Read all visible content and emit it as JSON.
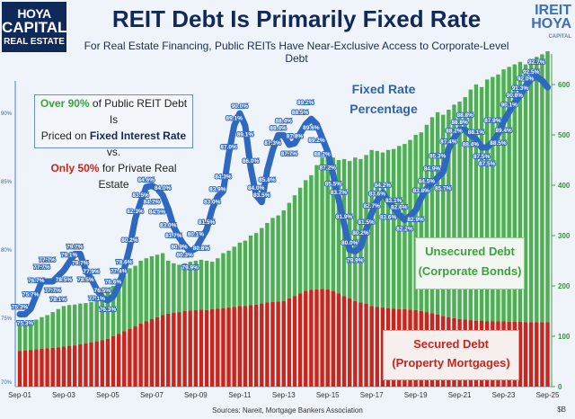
{
  "header": {
    "logo_left": [
      "HOYA",
      "CAPITAL",
      "REAL ESTATE"
    ],
    "title": "REIT Debt Is Primarily Fixed Rate",
    "subtitle": "For Real Estate Financing, Public REITs Have Near-Exclusive Access to Corporate-Level Debt",
    "logo_right": [
      "IREIT",
      "HOYA",
      "CAPITAL"
    ]
  },
  "callout": {
    "p1": "Over 90%",
    "p2": " of Public REIT Debt Is",
    "p3": "Priced on ",
    "p4": "Fixed Interest Rate",
    "p5": " vs.",
    "p6": "Only 50%",
    "p7": " for Private Real Estate"
  },
  "annotations": {
    "fixed_rate": [
      "Fixed Rate",
      "Percentage"
    ],
    "unsecured": [
      "Unsecured Debt",
      "(Corporate Bonds)"
    ],
    "secured": [
      "Secured Debt",
      "(Property Mortgages)"
    ]
  },
  "footer": {
    "sources": "Sources: Nareit, Mortgage Bankers Association",
    "unit": "$B"
  },
  "colors": {
    "unsecured": "#4caf50",
    "secured": "#c8261d",
    "fixed_rate_line": "#2f68c0",
    "title": "#11285a"
  },
  "chart_data": {
    "type": "bar+line",
    "x_tick_labels": [
      "Sep-01",
      "Sep-03",
      "Sep-05",
      "Sep-07",
      "Sep-09",
      "Sep-11",
      "Sep-13",
      "Sep-15",
      "Sep-17",
      "Sep-19",
      "Sep-21",
      "Sep-23",
      "Sep-25"
    ],
    "frequency": "quarterly",
    "left_axis": {
      "ticks": [
        "70%",
        "75%",
        "80%",
        "85%",
        "90%"
      ],
      "ylim": [
        70,
        90
      ]
    },
    "right_axis": {
      "ticks": [
        "0",
        "100",
        "200",
        "300",
        "400",
        "500",
        "600"
      ],
      "ylim": [
        0,
        700
      ],
      "unit": "$B"
    },
    "grid": false,
    "series": [
      {
        "name": "Secured Debt (Property Mortgages)",
        "axis": "right",
        "type": "stacked-bar",
        "values": [
          71,
          72,
          73,
          74,
          75,
          76,
          77,
          78,
          80,
          81,
          82,
          84,
          86,
          88,
          90,
          92,
          95,
          100,
          105,
          110,
          115,
          120,
          125,
          130,
          134,
          138,
          142,
          145,
          147,
          148,
          150,
          151,
          152,
          153,
          152,
          154,
          155,
          156,
          157,
          158,
          160,
          160,
          162,
          163,
          165,
          167,
          168,
          169,
          170,
          175,
          180,
          185,
          190,
          192,
          193,
          194,
          193,
          190,
          185,
          180,
          175,
          170,
          167,
          165,
          160,
          158,
          157,
          156,
          155,
          154,
          154,
          153,
          152,
          150,
          148,
          146,
          143,
          140,
          138,
          136,
          134,
          133,
          132,
          131,
          131,
          130,
          130,
          130,
          130,
          129,
          129,
          129,
          128,
          128,
          128,
          128,
          128
        ]
      },
      {
        "name": "Unsecured Debt (Corporate Bonds)",
        "axis": "right",
        "type": "stacked-bar",
        "note_total_values": true,
        "total_values": [
          129,
          128,
          130,
          133,
          138,
          142,
          148,
          154,
          160,
          162,
          163,
          165,
          166,
          168,
          175,
          185,
          193,
          200,
          210,
          222,
          235,
          240,
          250,
          255,
          259,
          262,
          265,
          250,
          245,
          242,
          245,
          248,
          250,
          252,
          250,
          248,
          255,
          265,
          270,
          278,
          286,
          290,
          300,
          305,
          315,
          325,
          335,
          340,
          350,
          365,
          380,
          395,
          410,
          420,
          440,
          455,
          460,
          455,
          450,
          452,
          448,
          455,
          452,
          460,
          470,
          468,
          465,
          470,
          472,
          478,
          482,
          490,
          500,
          505,
          520,
          535,
          545,
          540,
          550,
          560,
          566,
          575,
          590,
          600,
          595,
          610,
          615,
          620,
          630,
          635,
          640,
          645,
          640,
          650,
          655,
          660,
          666
        ]
      },
      {
        "name": "Fixed Rate Percentage",
        "axis": "left",
        "type": "line",
        "values": [
          75.3,
          75.3,
          75.7,
          76.7,
          77.7,
          77.7,
          77.7,
          78.1,
          78.5,
          79.1,
          79.7,
          79.7,
          78.5,
          77.9,
          77.1,
          76.5,
          76.3,
          76.6,
          77.4,
          78.6,
          80.2,
          82.3,
          83.5,
          84.6,
          84.7,
          84.5,
          84.0,
          83.0,
          81.7,
          80.9,
          80.3,
          79.9,
          80.1,
          80.8,
          81.5,
          83.0,
          83.9,
          84.3,
          87.0,
          89.1,
          90.0,
          89.1,
          86.0,
          84.0,
          83.5,
          85.8,
          87.3,
          88.4,
          88.4,
          87.7,
          87.8,
          88.5,
          89.2,
          89.6,
          89.2,
          88.2,
          87.2,
          85.5,
          83.7,
          81.9,
          80.0,
          79.9,
          80.2,
          81.5,
          82.7,
          83.6,
          84.2,
          83.6,
          83.1,
          82.6,
          82.2,
          82.5,
          82.9,
          83.8,
          84.5,
          84.9,
          85.3,
          85.7,
          87.4,
          88.2,
          88.8,
          88.8,
          88.4,
          88.1,
          87.5,
          87.5,
          87.9,
          88.5,
          89.4,
          90.1,
          90.8,
          91.3,
          92.0,
          92.5,
          92.7,
          92.4,
          91.9
        ]
      }
    ]
  }
}
